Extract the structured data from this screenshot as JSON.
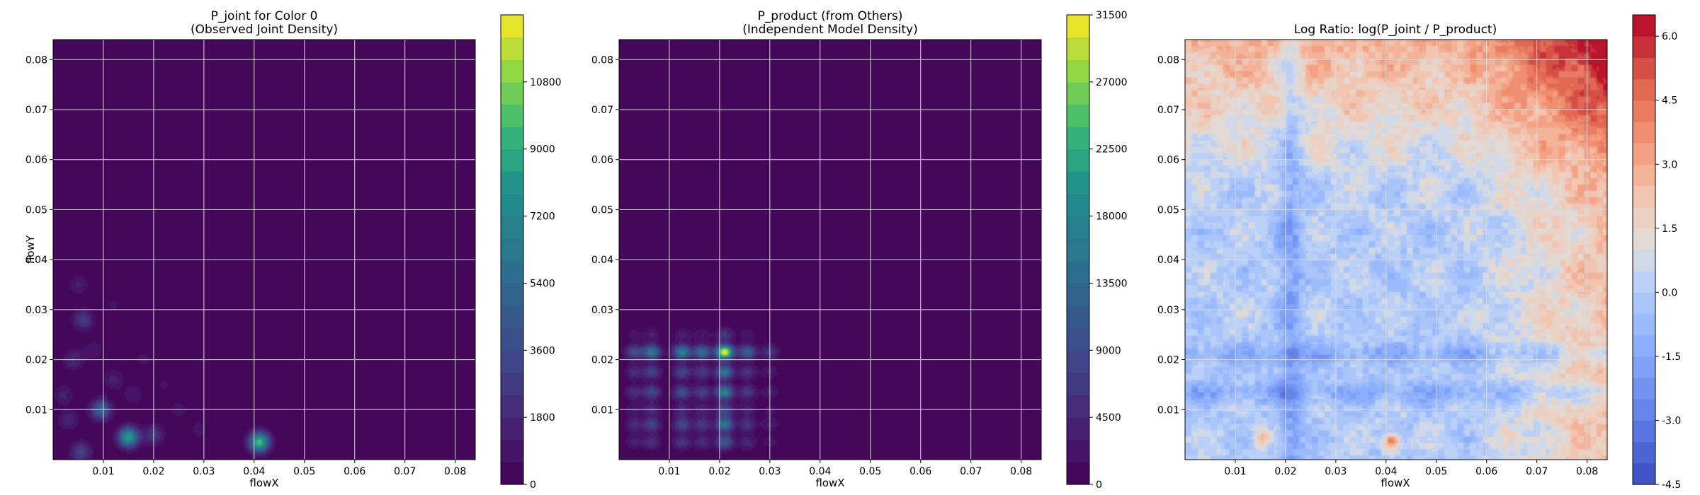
{
  "chart_data": [
    {
      "type": "heatmap",
      "title_line1": "P_joint for Color 0",
      "title_line2": "(Observed Joint Density)",
      "xlabel": "flowX",
      "ylabel": "flowY",
      "xlim": [
        0.0,
        0.084
      ],
      "ylim": [
        0.0,
        0.084
      ],
      "xticks": [
        "0.01",
        "0.02",
        "0.03",
        "0.04",
        "0.05",
        "0.06",
        "0.07",
        "0.08"
      ],
      "yticks": [
        "0.01",
        "0.02",
        "0.03",
        "0.04",
        "0.05",
        "0.06",
        "0.07",
        "0.08"
      ],
      "grid": true,
      "colormap": "viridis",
      "colorbar": {
        "min": 0,
        "max": 12600,
        "levels": 21,
        "ticks": [
          "0",
          "1800",
          "3600",
          "5400",
          "7200",
          "9000",
          "10800"
        ]
      },
      "hotspots": [
        {
          "x": 0.015,
          "y": 0.0045,
          "value": 8500
        },
        {
          "x": 0.041,
          "y": 0.0035,
          "value": 9800
        },
        {
          "x": 0.0095,
          "y": 0.01,
          "value": 5200
        },
        {
          "x": 0.006,
          "y": 0.028,
          "value": 2800
        },
        {
          "x": 0.0055,
          "y": 0.0015,
          "value": 3200
        },
        {
          "x": 0.02,
          "y": 0.005,
          "value": 2600
        },
        {
          "x": 0.004,
          "y": 0.02,
          "value": 1900
        },
        {
          "x": 0.012,
          "y": 0.016,
          "value": 1500
        },
        {
          "x": 0.016,
          "y": 0.013,
          "value": 1200
        },
        {
          "x": 0.005,
          "y": 0.035,
          "value": 1300
        },
        {
          "x": 0.025,
          "y": 0.01,
          "value": 900
        },
        {
          "x": 0.008,
          "y": 0.022,
          "value": 1100
        },
        {
          "x": 0.003,
          "y": 0.008,
          "value": 1700
        },
        {
          "x": 0.018,
          "y": 0.02,
          "value": 800
        },
        {
          "x": 0.022,
          "y": 0.015,
          "value": 700
        },
        {
          "x": 0.012,
          "y": 0.031,
          "value": 700
        },
        {
          "x": 0.002,
          "y": 0.013,
          "value": 1400
        },
        {
          "x": 0.029,
          "y": 0.006,
          "value": 900
        }
      ]
    },
    {
      "type": "heatmap",
      "title_line1": "P_product (from Others)",
      "title_line2": "(Independent Model Density)",
      "xlabel": "flowX",
      "ylabel": "",
      "xlim": [
        0.0,
        0.084
      ],
      "ylim": [
        0.0,
        0.084
      ],
      "xticks": [
        "0.01",
        "0.02",
        "0.03",
        "0.04",
        "0.05",
        "0.06",
        "0.07",
        "0.08"
      ],
      "yticks": [
        "0.01",
        "0.02",
        "0.03",
        "0.04",
        "0.05",
        "0.06",
        "0.07",
        "0.08"
      ],
      "grid": true,
      "colormap": "viridis",
      "colorbar": {
        "min": 0,
        "max": 31500,
        "levels": 21,
        "ticks": [
          "0",
          "4500",
          "9000",
          "13500",
          "18000",
          "22500",
          "27000",
          "31500"
        ]
      },
      "x_marginal_peaks": [
        {
          "x": 0.021,
          "weight": 1.0
        },
        {
          "x": 0.0065,
          "weight": 0.5
        },
        {
          "x": 0.0125,
          "weight": 0.55
        },
        {
          "x": 0.0165,
          "weight": 0.45
        },
        {
          "x": 0.0255,
          "weight": 0.4
        },
        {
          "x": 0.003,
          "weight": 0.3
        },
        {
          "x": 0.03,
          "weight": 0.2
        }
      ],
      "y_marginal_peaks": [
        {
          "y": 0.0215,
          "weight": 1.0
        },
        {
          "y": 0.0135,
          "weight": 0.55
        },
        {
          "y": 0.0175,
          "weight": 0.5
        },
        {
          "y": 0.007,
          "weight": 0.5
        },
        {
          "y": 0.0035,
          "weight": 0.35
        },
        {
          "y": 0.01,
          "weight": 0.3
        },
        {
          "y": 0.025,
          "weight": 0.2
        }
      ],
      "peak_value": 31500
    },
    {
      "type": "heatmap",
      "title_line1": "Log Ratio: log(P_joint / P_product)",
      "title_line2": "",
      "xlabel": "flowX",
      "ylabel": "",
      "xlim": [
        0.0,
        0.084
      ],
      "ylim": [
        0.0,
        0.084
      ],
      "xticks": [
        "0.01",
        "0.02",
        "0.03",
        "0.04",
        "0.05",
        "0.06",
        "0.07",
        "0.08"
      ],
      "yticks": [
        "0.01",
        "0.02",
        "0.03",
        "0.04",
        "0.05",
        "0.06",
        "0.07",
        "0.08"
      ],
      "grid": true,
      "colormap": "coolwarm",
      "colorbar": {
        "min": -4.5,
        "max": 6.5,
        "levels": 22,
        "ticks": [
          "-4.5",
          "-3.0",
          "-1.5",
          "0.0",
          "1.5",
          "3.0",
          "4.5",
          "6.0"
        ]
      },
      "low_bands_x": [
        0.021
      ],
      "low_bands_y": [
        0.021,
        0.0135
      ],
      "high_region": {
        "x_from": 0.055,
        "y_from": 0.055,
        "max": 5.5
      },
      "spots": [
        {
          "x": 0.041,
          "y": 0.0035,
          "value": 4.5
        },
        {
          "x": 0.015,
          "y": 0.0045,
          "value": 2.5
        }
      ]
    }
  ],
  "colors": {
    "viridis_low": "#440154",
    "grid": "#d8d8d8"
  }
}
